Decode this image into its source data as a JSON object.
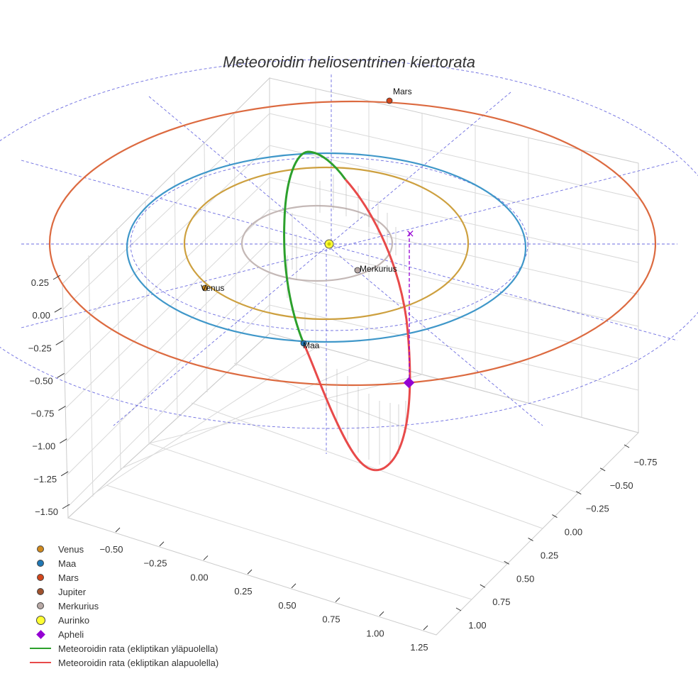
{
  "chart_data": {
    "type": "3d-orbit",
    "title": "Meteoroidin heliosentrinen kiertorata",
    "x_axis": {
      "ticks": [
        -0.5,
        -0.25,
        0.0,
        0.25,
        0.5,
        0.75,
        1.0,
        1.25
      ],
      "tick_labels": [
        "−0.50",
        "−0.25",
        "0.00",
        "0.25",
        "0.50",
        "0.75",
        "1.00",
        "1.25"
      ]
    },
    "y_axis": {
      "ticks": [
        -0.75,
        -0.5,
        -0.25,
        0.0,
        0.25,
        0.5,
        0.75,
        1.0
      ],
      "tick_labels": [
        "−0.75",
        "−0.50",
        "−0.25",
        "0.00",
        "0.25",
        "0.50",
        "0.75",
        "1.00"
      ]
    },
    "z_axis": {
      "ticks": [
        0.25,
        0.0,
        -0.25,
        -0.5,
        -0.75,
        -1.0,
        -1.25,
        -1.5
      ],
      "tick_labels": [
        "0.25",
        "0.00",
        "−0.25",
        "−0.50",
        "−0.75",
        "−1.00",
        "−1.25",
        "−1.50"
      ]
    },
    "planets": [
      {
        "name": "Merkurius",
        "orbit_radius_au": 0.39,
        "color": "#b9aaa8",
        "marker_color": "#b8a9a6"
      },
      {
        "name": "Venus",
        "orbit_radius_au": 0.72,
        "color": "#cda03f",
        "marker_color": "#d08a1e"
      },
      {
        "name": "Maa",
        "orbit_radius_au": 1.0,
        "color": "#2a7fc4",
        "marker_color": "#1f77b4"
      },
      {
        "name": "Mars",
        "orbit_radius_au": 1.52,
        "color": "#dc6a40",
        "marker_color": "#d3461b"
      }
    ],
    "sun": {
      "name": "Aurinko",
      "position": [
        0,
        0,
        0
      ],
      "color": "#ffff33"
    },
    "aphelion": {
      "name": "Apheli",
      "color": "#9400d3"
    },
    "meteoroid_orbit": {
      "above_ecliptic": {
        "name": "Meteoroidin rata (ekliptikan yläpuolella)",
        "color": "#2ca02c"
      },
      "below_ecliptic": {
        "name": "Meteoroidin rata (ekliptikan alapuolella)",
        "color": "#e84a4a"
      }
    }
  },
  "labels": {
    "mars": "Mars",
    "merkurius": "Merkurius",
    "venus": "Venus",
    "maa": "Maa"
  },
  "legend": [
    {
      "label": "Venus",
      "color": "#d08a1e",
      "kind": "dot"
    },
    {
      "label": "Maa",
      "color": "#1f77b4",
      "kind": "dot"
    },
    {
      "label": "Mars",
      "color": "#d3461b",
      "kind": "dot"
    },
    {
      "label": "Jupiter",
      "color": "#a0522d",
      "kind": "dot"
    },
    {
      "label": "Merkurius",
      "color": "#b8a9a6",
      "kind": "dot"
    },
    {
      "label": "Aurinko",
      "color": "#ffff33",
      "kind": "dot-lg"
    },
    {
      "label": "Apheli",
      "color": "#9400d3",
      "kind": "diamond"
    },
    {
      "label": "Meteoroidin rata (ekliptikan yläpuolella)",
      "color": "#2ca02c",
      "kind": "line"
    },
    {
      "label": "Meteoroidin rata (ekliptikan alapuolella)",
      "color": "#e84a4a",
      "kind": "line"
    }
  ]
}
